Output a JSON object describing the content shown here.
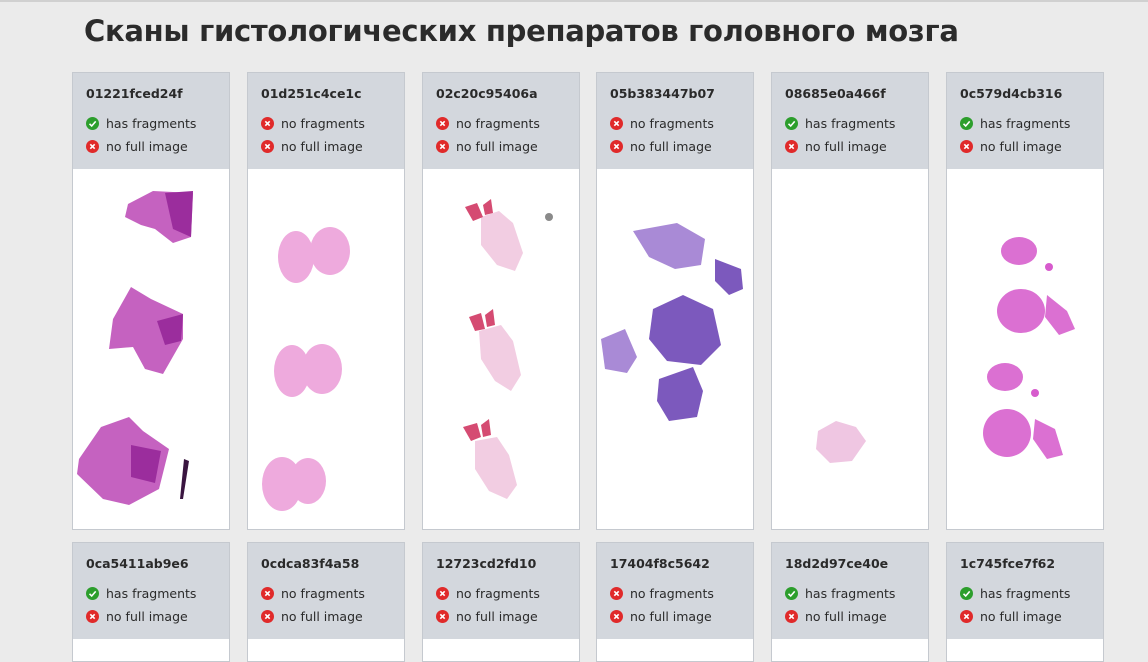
{
  "page": {
    "title": "Сканы гистологических препаратов головного мозга"
  },
  "cards": [
    {
      "id": "01221fced24f",
      "fragments": true,
      "fragments_label": "has fragments",
      "full_image_label": "no full image",
      "stain": "#b13fb0"
    },
    {
      "id": "01d251c4ce1c",
      "fragments": false,
      "fragments_label": "no fragments",
      "full_image_label": "no full image",
      "stain": "#e58fd0"
    },
    {
      "id": "02c20c95406a",
      "fragments": false,
      "fragments_label": "no fragments",
      "full_image_label": "no full image",
      "stain": "#e9b3cf"
    },
    {
      "id": "05b383447b07",
      "fragments": false,
      "fragments_label": "no fragments",
      "full_image_label": "no full image",
      "stain": "#8a66c2"
    },
    {
      "id": "08685e0a466f",
      "fragments": true,
      "fragments_label": "has fragments",
      "full_image_label": "no full image",
      "stain": "#e6b2d8"
    },
    {
      "id": "0c579d4cb316",
      "fragments": true,
      "fragments_label": "has fragments",
      "full_image_label": "no full image",
      "stain": "#d34fc9"
    },
    {
      "id": "0ca5411ab9e6",
      "fragments": true,
      "fragments_label": "has fragments",
      "full_image_label": "no full image"
    },
    {
      "id": "0cdca83f4a58",
      "fragments": false,
      "fragments_label": "no fragments",
      "full_image_label": "no full image"
    },
    {
      "id": "12723cd2fd10",
      "fragments": false,
      "fragments_label": "no fragments",
      "full_image_label": "no full image"
    },
    {
      "id": "17404f8c5642",
      "fragments": false,
      "fragments_label": "no fragments",
      "full_image_label": "no full image"
    },
    {
      "id": "18d2d97ce40e",
      "fragments": true,
      "fragments_label": "has fragments",
      "full_image_label": "no full image"
    },
    {
      "id": "1c745fce7f62",
      "fragments": true,
      "fragments_label": "has fragments",
      "full_image_label": "no full image"
    }
  ],
  "icons": {
    "ok": "check-circle-icon",
    "bad": "cross-circle-icon"
  },
  "colors": {
    "ok": "#2c9e2c",
    "bad": "#e02a2a",
    "header_bg": "#d3d7dd",
    "page_bg": "#ebebeb"
  }
}
